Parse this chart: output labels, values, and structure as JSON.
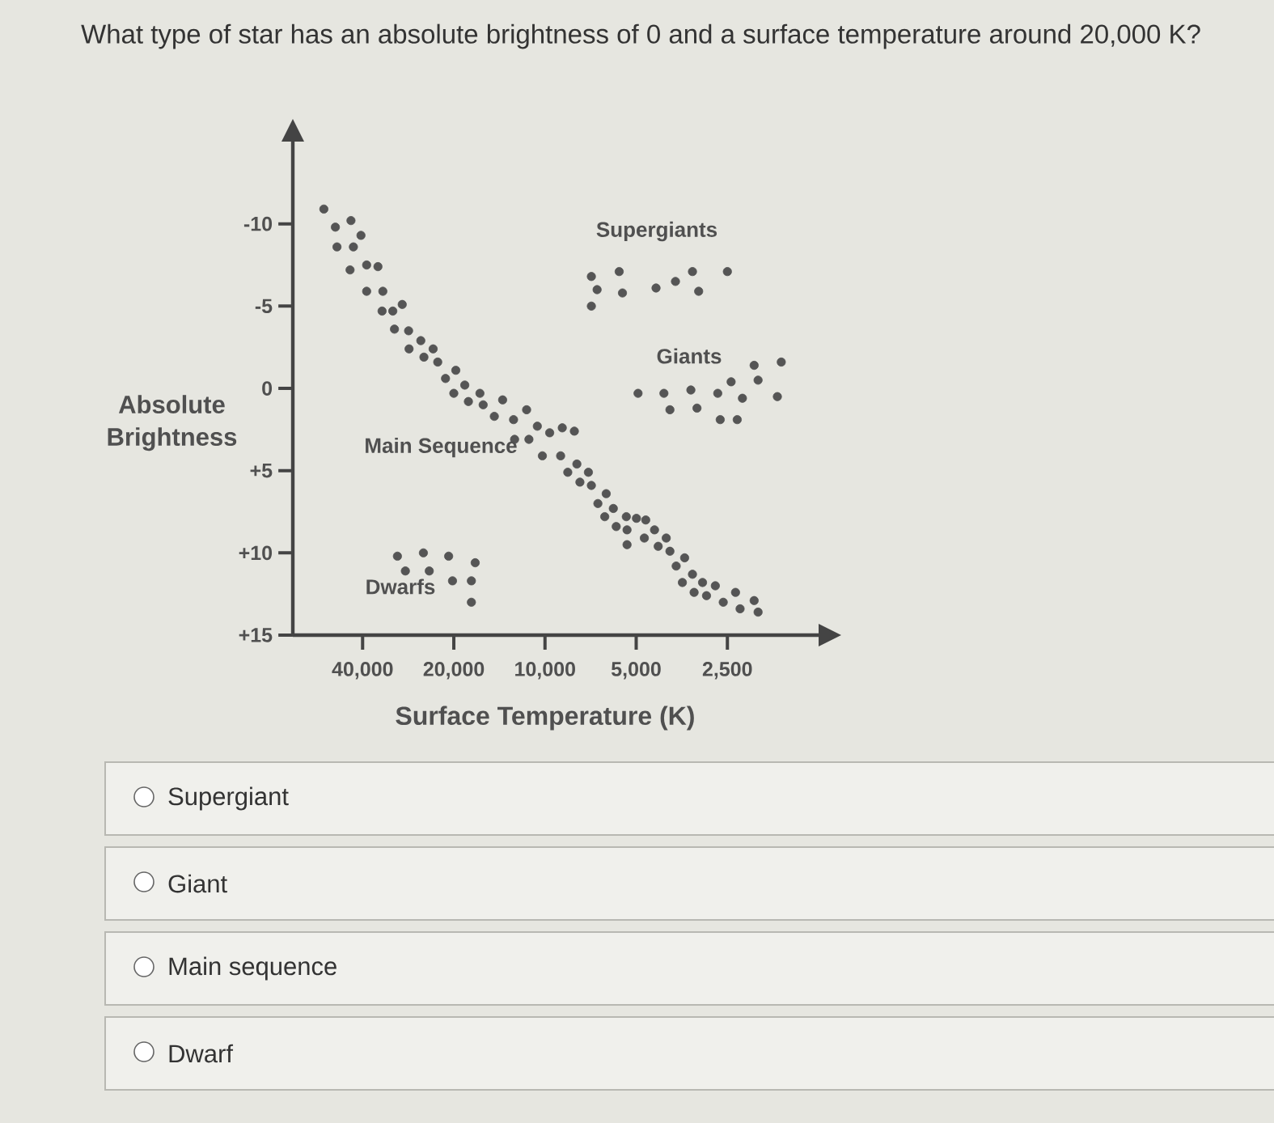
{
  "chart_data": {
    "type": "scatter",
    "title": "What type of star has an absolute brightness of 0 and a surface temperature around 20,000 K?",
    "xlabel": "Surface Temperature (K)",
    "ylabel": "Absolute Brightness",
    "log": "x",
    "xlim": [
      68000,
      1250
    ],
    "ylim": [
      15,
      -15
    ],
    "xticks": [
      {
        "value": 40000,
        "label": "40,000"
      },
      {
        "value": 20000,
        "label": "20,000"
      },
      {
        "value": 10000,
        "label": "10,000"
      },
      {
        "value": 5000,
        "label": "5,000"
      },
      {
        "value": 2500,
        "label": "2,500"
      }
    ],
    "yticks": [
      -10,
      -5,
      0,
      {
        "value": 5,
        "label": "+5"
      },
      {
        "value": 10,
        "label": "+10"
      },
      {
        "value": 15,
        "label": "+15"
      }
    ],
    "grid": false,
    "series": [
      {
        "color": "#555555",
        "x": [
          53700,
          43700,
          49200,
          40500,
          48600,
          42900,
          44000,
          38800,
          35600,
          38800,
          34300,
          34500,
          31800,
          29600,
          31400,
          28200,
          25700,
          23400,
          28100,
          25100,
          22600,
          19700,
          21300,
          18400,
          20000,
          16400,
          17900,
          16000,
          13800,
          14700,
          12700,
          11500,
          12600,
          11300,
          10600,
          9650,
          8770,
          8000,
          10200,
          8880,
          7850,
          8410,
          7190,
          7670,
          7030,
          6280,
          6690,
          5950,
          6350,
          5390,
          4990,
          4650,
          5820,
          5360,
          4350,
          4700,
          3980,
          5360,
          4230,
          3870,
          3460,
          3690,
          3260,
          3520,
          3020,
          2740,
          3220,
          2930,
          2580,
          2350,
          2270,
          2040,
          1980,
          7030,
          6730,
          7030,
          5690,
          5550,
          4300,
          3710,
          3260,
          3110,
          2500,
          4930,
          4050,
          3300,
          2690,
          2430,
          2230,
          2040,
          1980,
          1660,
          1710,
          3870,
          3150,
          2640,
          2320,
          30700,
          25200,
          20800,
          17000,
          28900,
          24100,
          20200,
          17500,
          17500
        ],
        "values": [
          -10.9,
          -10.2,
          -9.8,
          -9.3,
          -8.6,
          -8.6,
          -7.2,
          -7.5,
          -7.4,
          -5.9,
          -5.9,
          -4.7,
          -4.7,
          -5.1,
          -3.6,
          -3.5,
          -2.9,
          -2.4,
          -2.4,
          -1.9,
          -1.6,
          -1.1,
          -0.6,
          -0.2,
          0.3,
          0.3,
          0.8,
          1.0,
          0.7,
          1.7,
          1.9,
          1.3,
          3.1,
          3.1,
          2.3,
          2.7,
          2.4,
          2.6,
          4.1,
          4.1,
          4.6,
          5.1,
          5.1,
          5.7,
          5.9,
          6.4,
          7.0,
          7.3,
          7.8,
          7.8,
          7.9,
          8.0,
          8.4,
          8.6,
          8.6,
          9.1,
          9.1,
          9.5,
          9.6,
          9.9,
          10.3,
          10.8,
          11.3,
          11.8,
          11.8,
          12.0,
          12.4,
          12.6,
          13.0,
          12.4,
          13.4,
          12.9,
          13.6,
          -6.8,
          -6.0,
          -5.0,
          -7.1,
          -5.8,
          -6.1,
          -6.5,
          -7.1,
          -5.9,
          -7.1,
          0.3,
          0.3,
          0.1,
          0.3,
          -0.4,
          0.6,
          -1.4,
          -0.5,
          -1.6,
          0.5,
          1.3,
          1.2,
          1.9,
          1.9,
          10.2,
          10.0,
          10.2,
          10.6,
          11.1,
          11.1,
          11.7,
          11.7,
          13.0
        ]
      }
    ],
    "annotations": [
      "Supergiants",
      "Giants",
      "Main Sequence",
      "Dwarfs",
      "Supergiant",
      "Giant",
      "Main sequence",
      "Dwarf"
    ]
  }
}
